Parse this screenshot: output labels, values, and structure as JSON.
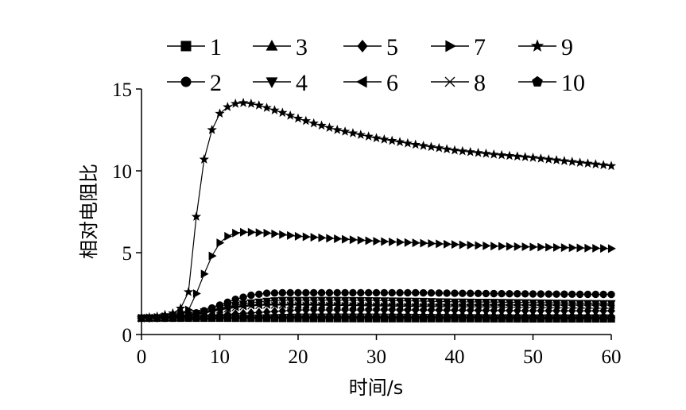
{
  "chart_data": {
    "type": "line",
    "title": "",
    "xlabel": "时间/s",
    "ylabel": "相对电阻比",
    "xlim": [
      0,
      60
    ],
    "ylim": [
      0,
      15
    ],
    "xticks": [
      0,
      10,
      20,
      30,
      40,
      50,
      60
    ],
    "yticks": [
      0,
      5,
      10,
      15
    ],
    "grid": false,
    "legend_position": "top",
    "colors": {
      "line": "#000000",
      "marker": "#000000"
    },
    "series": [
      {
        "name": "1",
        "marker": "square",
        "x": [
          0,
          2,
          5,
          10,
          20,
          30,
          40,
          50,
          60
        ],
        "y": [
          1.0,
          1.0,
          1.0,
          1.0,
          0.98,
          0.97,
          0.97,
          0.96,
          0.96
        ]
      },
      {
        "name": "2",
        "marker": "circle",
        "x": [
          0,
          2,
          4,
          6,
          8,
          10,
          12,
          14,
          16,
          18,
          20,
          25,
          30,
          35,
          40,
          45,
          50,
          55,
          60
        ],
        "y": [
          1.0,
          1.02,
          1.08,
          1.2,
          1.45,
          1.8,
          2.15,
          2.4,
          2.52,
          2.55,
          2.55,
          2.55,
          2.55,
          2.55,
          2.52,
          2.5,
          2.48,
          2.46,
          2.45
        ]
      },
      {
        "name": "3",
        "marker": "triangle-up",
        "x": [
          0,
          5,
          10,
          20,
          30,
          40,
          50,
          60
        ],
        "y": [
          1.0,
          1.05,
          1.15,
          1.25,
          1.25,
          1.22,
          1.2,
          1.2
        ]
      },
      {
        "name": "4",
        "marker": "triangle-down",
        "x": [
          0,
          2,
          4,
          6,
          8,
          10,
          12,
          14,
          16,
          18,
          20,
          25,
          30,
          35,
          40,
          45,
          50,
          55,
          60
        ],
        "y": [
          1.0,
          1.02,
          1.08,
          1.2,
          1.4,
          1.6,
          1.8,
          1.95,
          2.05,
          2.1,
          2.1,
          2.1,
          2.08,
          2.05,
          2.0,
          1.98,
          1.95,
          1.92,
          1.9
        ]
      },
      {
        "name": "5",
        "marker": "diamond",
        "x": [
          0,
          5,
          10,
          20,
          30,
          40,
          50,
          60
        ],
        "y": [
          1.0,
          1.05,
          1.2,
          1.5,
          1.5,
          1.48,
          1.45,
          1.45
        ]
      },
      {
        "name": "6",
        "marker": "triangle-left",
        "x": [
          0,
          2,
          4,
          6,
          8,
          10,
          12,
          14,
          16,
          18,
          20,
          25,
          30,
          35,
          40,
          45,
          50,
          55,
          60
        ],
        "y": [
          1.0,
          1.02,
          1.06,
          1.15,
          1.35,
          1.55,
          1.7,
          1.8,
          1.85,
          1.85,
          1.85,
          1.85,
          1.82,
          1.8,
          1.8,
          1.8,
          1.8,
          1.8,
          1.8
        ]
      },
      {
        "name": "7",
        "marker": "triangle-right",
        "x": [
          0,
          2,
          4,
          6,
          7,
          8,
          9,
          10,
          11,
          12,
          13,
          14,
          16,
          18,
          20,
          25,
          30,
          35,
          40,
          45,
          50,
          55,
          60
        ],
        "y": [
          1.0,
          1.05,
          1.15,
          1.5,
          2.5,
          3.7,
          4.8,
          5.6,
          6.0,
          6.2,
          6.25,
          6.25,
          6.2,
          6.1,
          6.0,
          5.85,
          5.7,
          5.6,
          5.5,
          5.4,
          5.35,
          5.3,
          5.25
        ]
      },
      {
        "name": "8",
        "marker": "x",
        "x": [
          0,
          2,
          4,
          6,
          8,
          10,
          12,
          14,
          16,
          18,
          20,
          25,
          30,
          35,
          40,
          45,
          50,
          55,
          60
        ],
        "y": [
          1.0,
          1.02,
          1.06,
          1.15,
          1.3,
          1.5,
          1.65,
          1.75,
          1.8,
          1.8,
          1.8,
          1.78,
          1.75,
          1.72,
          1.7,
          1.68,
          1.65,
          1.62,
          1.6
        ]
      },
      {
        "name": "9",
        "marker": "star",
        "x": [
          0,
          2,
          4,
          5,
          6,
          7,
          8,
          9,
          10,
          11,
          12,
          13,
          14,
          15,
          16,
          18,
          20,
          22,
          25,
          30,
          35,
          40,
          45,
          50,
          55,
          60
        ],
        "y": [
          1.0,
          1.1,
          1.3,
          1.6,
          2.6,
          7.2,
          10.7,
          12.5,
          13.5,
          13.9,
          14.1,
          14.15,
          14.1,
          14.0,
          13.85,
          13.55,
          13.2,
          12.9,
          12.5,
          12.0,
          11.6,
          11.25,
          11.0,
          10.8,
          10.55,
          10.3
        ]
      },
      {
        "name": "10",
        "marker": "pentagon",
        "x": [
          0,
          5,
          10,
          20,
          30,
          40,
          50,
          60
        ],
        "y": [
          1.0,
          1.0,
          1.02,
          1.05,
          1.05,
          1.05,
          1.05,
          1.05
        ]
      }
    ]
  }
}
